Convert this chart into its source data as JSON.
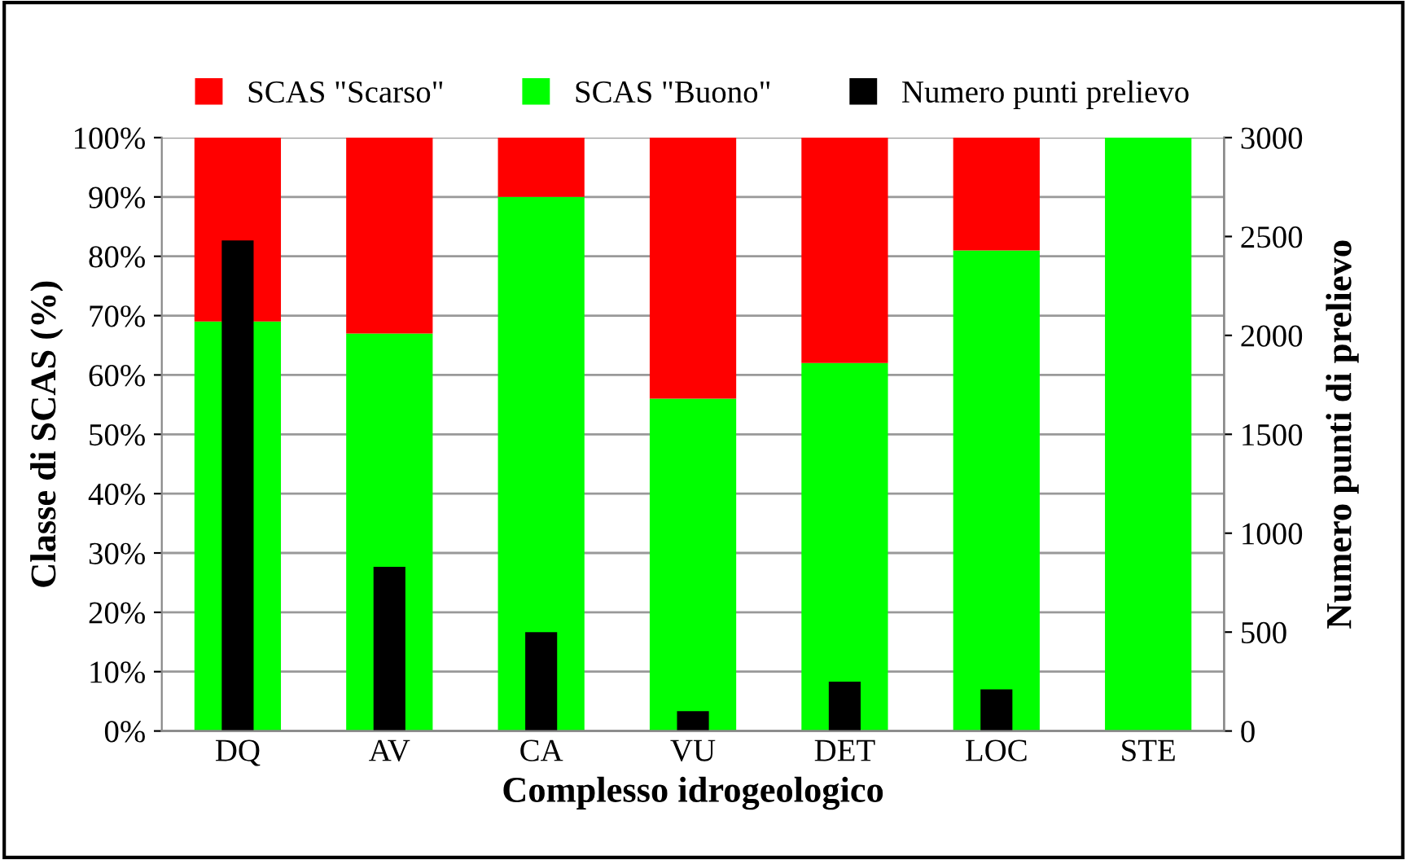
{
  "chart_data": {
    "type": "bar",
    "stacked": true,
    "xlabel": "Complesso idrogeologico",
    "ylabel": "Classe di SCAS (%)",
    "y2label": "Numero punti di prelievo",
    "categories": [
      "DQ",
      "AV",
      "CA",
      "VU",
      "DET",
      "LOC",
      "STE"
    ],
    "series": [
      {
        "name": "SCAS \"Buono\"",
        "color": "#00ff00",
        "values": [
          69,
          67,
          90,
          56,
          62,
          81,
          100
        ]
      },
      {
        "name": "SCAS \"Scarso\"",
        "color": "#ff0000",
        "values": [
          31,
          33,
          10,
          44,
          38,
          19,
          0
        ]
      },
      {
        "name": "Numero punti prelievo",
        "color": "#000000",
        "axis": "y2",
        "values": [
          2480,
          830,
          500,
          100,
          250,
          210,
          0
        ]
      }
    ],
    "ylim": [
      0,
      100
    ],
    "yticks": [
      {
        "value": 0,
        "label": "0%"
      },
      {
        "value": 10,
        "label": "10%"
      },
      {
        "value": 20,
        "label": "20%"
      },
      {
        "value": 30,
        "label": "30%"
      },
      {
        "value": 40,
        "label": "40%"
      },
      {
        "value": 50,
        "label": "50%"
      },
      {
        "value": 60,
        "label": "60%"
      },
      {
        "value": 70,
        "label": "70%"
      },
      {
        "value": 80,
        "label": "80%"
      },
      {
        "value": 90,
        "label": "90%"
      },
      {
        "value": 100,
        "label": "100%"
      }
    ],
    "y2lim": [
      0,
      3000
    ],
    "y2ticks": [
      0,
      500,
      1000,
      1500,
      2000,
      2500,
      3000
    ],
    "grid": "y",
    "legend": "top"
  }
}
